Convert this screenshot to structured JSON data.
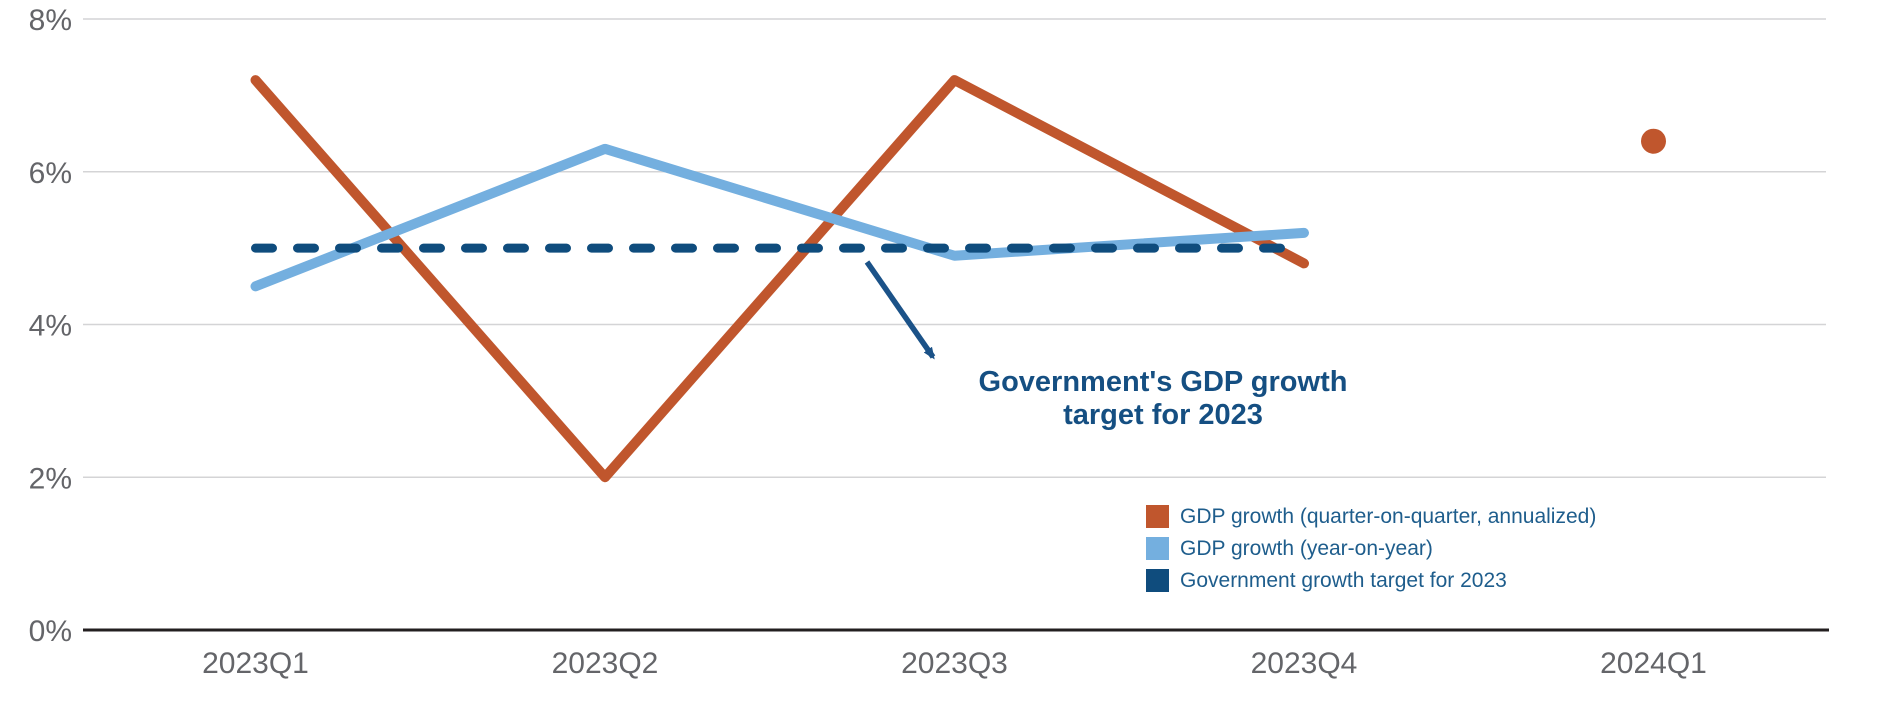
{
  "chart_data": {
    "type": "line",
    "categories": [
      "2023Q1",
      "2023Q2",
      "2023Q3",
      "2023Q4",
      "2024Q1"
    ],
    "series": [
      {
        "id": "gdp-qoq",
        "name": "GDP growth (quarter-on-quarter, annualized)",
        "color": "#C0562D",
        "dash": false,
        "values": [
          7.2,
          2.0,
          7.2,
          4.8
        ],
        "point": {
          "category": "2024Q1",
          "value": 6.4
        }
      },
      {
        "id": "gdp-yoy",
        "name": "GDP growth (year-on-year)",
        "color": "#74AFDF",
        "dash": false,
        "values": [
          4.5,
          6.3,
          4.9,
          5.2
        ]
      },
      {
        "id": "govt-target",
        "name": "Government growth target for 2023",
        "color": "#0F4C7D",
        "dash": true,
        "values": [
          5.0,
          5.0,
          5.0,
          5.0
        ]
      }
    ],
    "yticks": [
      {
        "label": "8%",
        "value": 8
      },
      {
        "label": "6%",
        "value": 6
      },
      {
        "label": "4%",
        "value": 4
      },
      {
        "label": "2%",
        "value": 2
      },
      {
        "label": "0%",
        "value": 0
      }
    ],
    "ylim": [
      0,
      8
    ],
    "xlabel": "",
    "ylabel": "",
    "grid": true,
    "legend_position": "bottom-right"
  },
  "annotation": {
    "lines": [
      "Government's GDP growth",
      "target for 2023"
    ],
    "color": "#154F82",
    "arrow_color": "#1B5288"
  }
}
